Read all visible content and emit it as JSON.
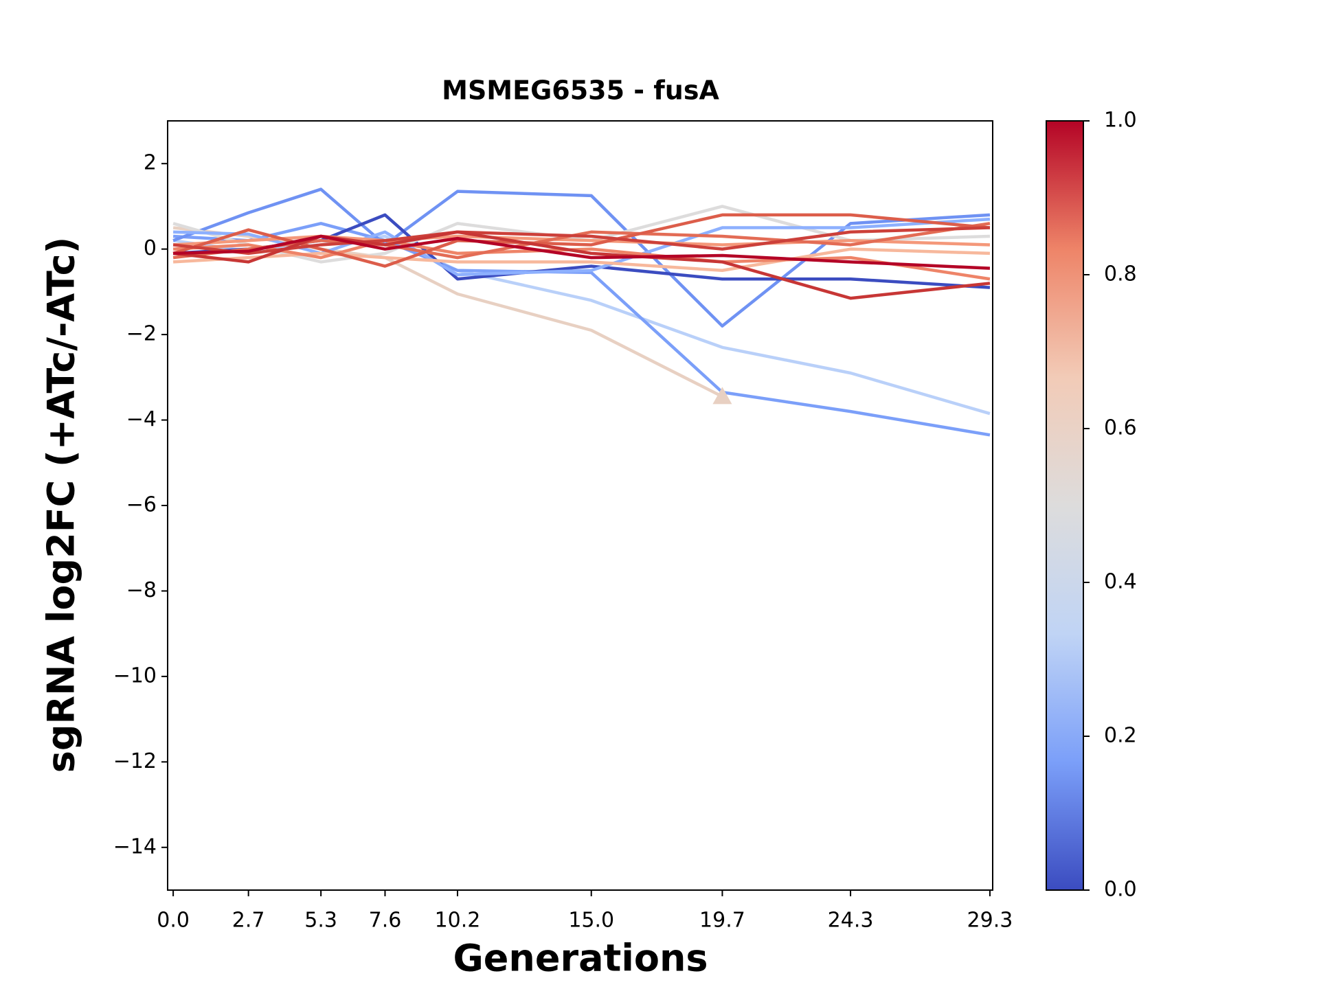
{
  "chart_data": {
    "type": "line",
    "title": "MSMEG6535 - fusA",
    "xlabel": "Generations",
    "ylabel": "sgRNA log2FC (+ATc/-ATc)",
    "x": [
      0,
      2.7,
      5.3,
      7.6,
      10.2,
      15.0,
      19.7,
      24.3,
      29.3
    ],
    "xlim": [
      -0.2,
      29.4
    ],
    "ylim": [
      -15,
      3
    ],
    "xticks": [
      {
        "value": 0,
        "label": "0.0"
      },
      {
        "value": 2.7,
        "label": "2.7"
      },
      {
        "value": 5.3,
        "label": "5.3"
      },
      {
        "value": 7.6,
        "label": "7.6"
      },
      {
        "value": 10.2,
        "label": "10.2"
      },
      {
        "value": 15.0,
        "label": "15.0"
      },
      {
        "value": 19.7,
        "label": "19.7"
      },
      {
        "value": 24.3,
        "label": "24.3"
      },
      {
        "value": 29.3,
        "label": "29.3"
      }
    ],
    "yticks": [
      {
        "value": -14,
        "label": "−14"
      },
      {
        "value": -12,
        "label": "−12"
      },
      {
        "value": -10,
        "label": "−10"
      },
      {
        "value": -8,
        "label": "−8"
      },
      {
        "value": -6,
        "label": "−6"
      },
      {
        "value": -4,
        "label": "−4"
      },
      {
        "value": -2,
        "label": "−2"
      },
      0,
      2
    ],
    "series": [
      {
        "color": "#b9d0f9",
        "values": [
          0.2,
          -0.05,
          0.1,
          0.3,
          -0.5,
          -1.2,
          -2.3,
          -2.9,
          -3.85
        ]
      },
      {
        "color": "#7b9ff9",
        "values": [
          0.3,
          0.2,
          0.6,
          0.2,
          -0.5,
          -0.55,
          -3.35,
          -3.8,
          -4.35
        ]
      },
      {
        "color": "#e8d0c2",
        "marker": "triangle",
        "values": [
          0.5,
          0.3,
          0.0,
          -0.2,
          -1.05,
          -1.9,
          -3.45,
          null,
          null
        ]
      },
      {
        "color": "#6f92f3",
        "values": [
          0.2,
          0.85,
          1.4,
          0.1,
          1.35,
          1.25,
          -1.8,
          0.6,
          0.8
        ]
      },
      {
        "color": "#3b4cc0",
        "values": [
          -0.1,
          0.0,
          0.2,
          0.8,
          -0.7,
          -0.4,
          -0.7,
          -0.7,
          -0.9
        ]
      },
      {
        "color": "#dddcdc",
        "values": [
          0.6,
          0.1,
          -0.3,
          -0.1,
          0.6,
          0.2,
          1.0,
          0.2,
          0.3
        ]
      },
      {
        "color": "#8db0fe",
        "values": [
          0.4,
          0.35,
          -0.1,
          0.4,
          -0.6,
          -0.5,
          0.5,
          0.5,
          0.7
        ]
      },
      {
        "color": "#f7b89c",
        "values": [
          -0.3,
          -0.2,
          -0.1,
          -0.2,
          -0.3,
          -0.3,
          -0.5,
          0.0,
          -0.1
        ]
      },
      {
        "color": "#f4987a",
        "values": [
          0.1,
          0.2,
          0.3,
          0.2,
          0.3,
          0.2,
          0.1,
          0.2,
          0.1
        ]
      },
      {
        "color": "#ee8468",
        "values": [
          0.0,
          0.1,
          -0.2,
          0.2,
          -0.1,
          0.0,
          -0.3,
          -0.2,
          -0.7
        ]
      },
      {
        "color": "#e36c55",
        "values": [
          -0.2,
          0.0,
          0.2,
          0.1,
          -0.2,
          0.4,
          0.3,
          0.1,
          0.6
        ]
      },
      {
        "color": "#dc5d4a",
        "values": [
          -0.1,
          0.45,
          0.0,
          -0.4,
          0.2,
          0.1,
          0.8,
          0.8,
          0.5
        ]
      },
      {
        "color": "#cc403a",
        "values": [
          0.1,
          -0.1,
          0.1,
          0.2,
          0.4,
          0.3,
          0.0,
          0.4,
          0.5
        ]
      },
      {
        "color": "#c73635",
        "values": [
          -0.1,
          -0.3,
          0.3,
          0.1,
          0.4,
          -0.1,
          -0.3,
          -1.15,
          -0.8
        ]
      },
      {
        "color": "#b40426",
        "values": [
          -0.1,
          -0.05,
          0.3,
          0.0,
          0.25,
          -0.2,
          -0.15,
          -0.3,
          -0.45
        ]
      }
    ],
    "colorbar": {
      "lim": [
        0,
        1
      ],
      "colormap": [
        "#3b4cc0",
        "#7b9ff9",
        "#c0d4f5",
        "#dddcdc",
        "#f2cbb7",
        "#ee8468",
        "#b40426"
      ],
      "ticks": [
        {
          "value": 0,
          "label": "0.0"
        },
        {
          "value": 0.2,
          "label": "0.2"
        },
        {
          "value": 0.4,
          "label": "0.4"
        },
        {
          "value": 0.6,
          "label": "0.6"
        },
        {
          "value": 0.8,
          "label": "0.8"
        },
        {
          "value": 1,
          "label": "1.0"
        }
      ]
    }
  }
}
